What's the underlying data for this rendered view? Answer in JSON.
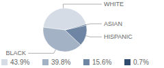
{
  "chart_data": {
    "type": "pie",
    "categories": [
      "WHITE",
      "BLACK",
      "HISPANIC",
      "ASIAN"
    ],
    "values": [
      43.9,
      39.8,
      15.6,
      0.7
    ],
    "value_labels": [
      "43.9%",
      "39.8%",
      "15.6%",
      "0.7%"
    ],
    "colors": [
      "#d5dce6",
      "#a4b2c5",
      "#6e85a3",
      "#2f4b6e"
    ],
    "legend": "bottom"
  }
}
